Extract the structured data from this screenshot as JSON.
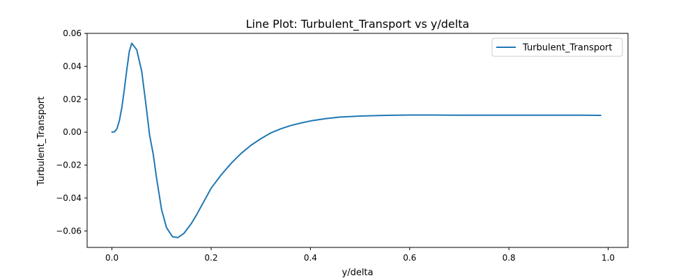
{
  "chart_data": {
    "type": "line",
    "title": "Line Plot: Turbulent_Transport vs y/delta",
    "xlabel": "y/delta",
    "ylabel": "Turbulent_Transport",
    "xlim": [
      -0.05,
      1.04
    ],
    "ylim": [
      -0.07,
      0.06
    ],
    "x_ticks": [
      0.0,
      0.2,
      0.4,
      0.6,
      0.8,
      1.0
    ],
    "x_tick_labels": [
      "0.0",
      "0.2",
      "0.4",
      "0.6",
      "0.8",
      "1.0"
    ],
    "y_ticks": [
      -0.06,
      -0.04,
      -0.02,
      0.0,
      0.02,
      0.04,
      0.06
    ],
    "y_tick_labels": [
      "−0.06",
      "−0.04",
      "−0.02",
      "0.00",
      "0.02",
      "0.04",
      "0.06"
    ],
    "grid": false,
    "legend_position": "top-right",
    "series": [
      {
        "name": "Turbulent_Transport",
        "color": "#1f77b4",
        "x": [
          0.0,
          0.005,
          0.01,
          0.015,
          0.02,
          0.025,
          0.03,
          0.035,
          0.04,
          0.045,
          0.05,
          0.06,
          0.068,
          0.076,
          0.083,
          0.09,
          0.1,
          0.11,
          0.122,
          0.133,
          0.145,
          0.16,
          0.17,
          0.18,
          0.19,
          0.2,
          0.22,
          0.24,
          0.26,
          0.28,
          0.3,
          0.32,
          0.34,
          0.36,
          0.38,
          0.4,
          0.43,
          0.46,
          0.5,
          0.55,
          0.6,
          0.65,
          0.7,
          0.75,
          0.8,
          0.85,
          0.9,
          0.95,
          0.985
        ],
        "y": [
          0.0,
          0.0002,
          0.002,
          0.007,
          0.015,
          0.026,
          0.038,
          0.049,
          0.054,
          0.052,
          0.05,
          0.037,
          0.018,
          -0.002,
          -0.013,
          -0.028,
          -0.047,
          -0.058,
          -0.0635,
          -0.064,
          -0.0615,
          -0.0555,
          -0.0505,
          -0.045,
          -0.0395,
          -0.034,
          -0.026,
          -0.019,
          -0.013,
          -0.008,
          -0.004,
          -0.0005,
          0.002,
          0.004,
          0.0055,
          0.0068,
          0.0082,
          0.0092,
          0.0098,
          0.0102,
          0.0104,
          0.0104,
          0.0103,
          0.0103,
          0.0103,
          0.0103,
          0.0103,
          0.0103,
          0.0102
        ]
      }
    ]
  }
}
